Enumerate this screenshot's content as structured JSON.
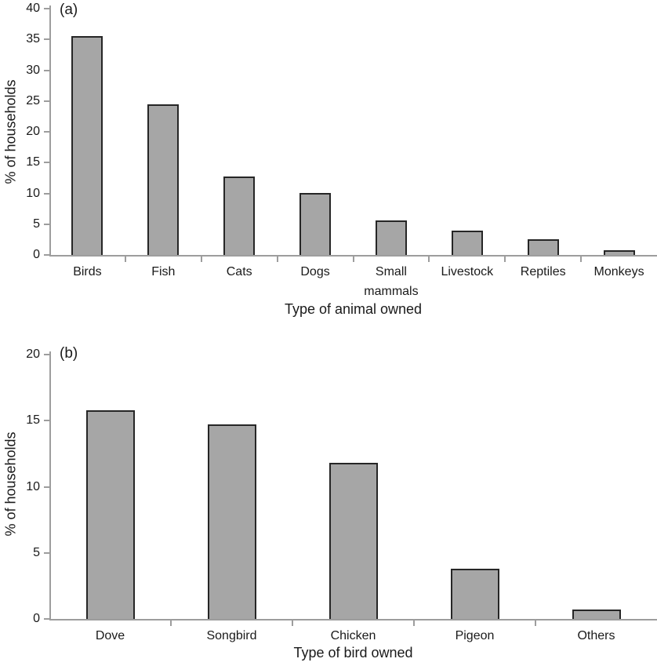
{
  "colors": {
    "bar_fill": "#a6a6a6",
    "bar_border": "#262626",
    "axis": "#9d9d9d",
    "text": "#1a1a1a"
  },
  "chart_data": [
    {
      "type": "bar",
      "panel_label": "(a)",
      "categories": [
        "Birds",
        "Fish",
        "Cats",
        "Dogs",
        "Small mammals",
        "Livestock",
        "Reptiles",
        "Monkeys"
      ],
      "values": [
        35.6,
        24.4,
        12.7,
        10.0,
        5.6,
        3.9,
        2.6,
        0.8
      ],
      "xlabel": "Type of animal owned",
      "ylabel": "% of households",
      "ylim": [
        0,
        40
      ],
      "ytick_step": 5,
      "grid": false,
      "legend": false
    },
    {
      "type": "bar",
      "panel_label": "(b)",
      "categories": [
        "Dove",
        "Songbird",
        "Chicken",
        "Pigeon",
        "Others"
      ],
      "values": [
        15.8,
        14.7,
        11.8,
        3.8,
        0.7
      ],
      "xlabel": "Type of bird owned",
      "ylabel": "% of households",
      "ylim": [
        0,
        20
      ],
      "ytick_step": 5,
      "grid": false,
      "legend": false
    }
  ]
}
